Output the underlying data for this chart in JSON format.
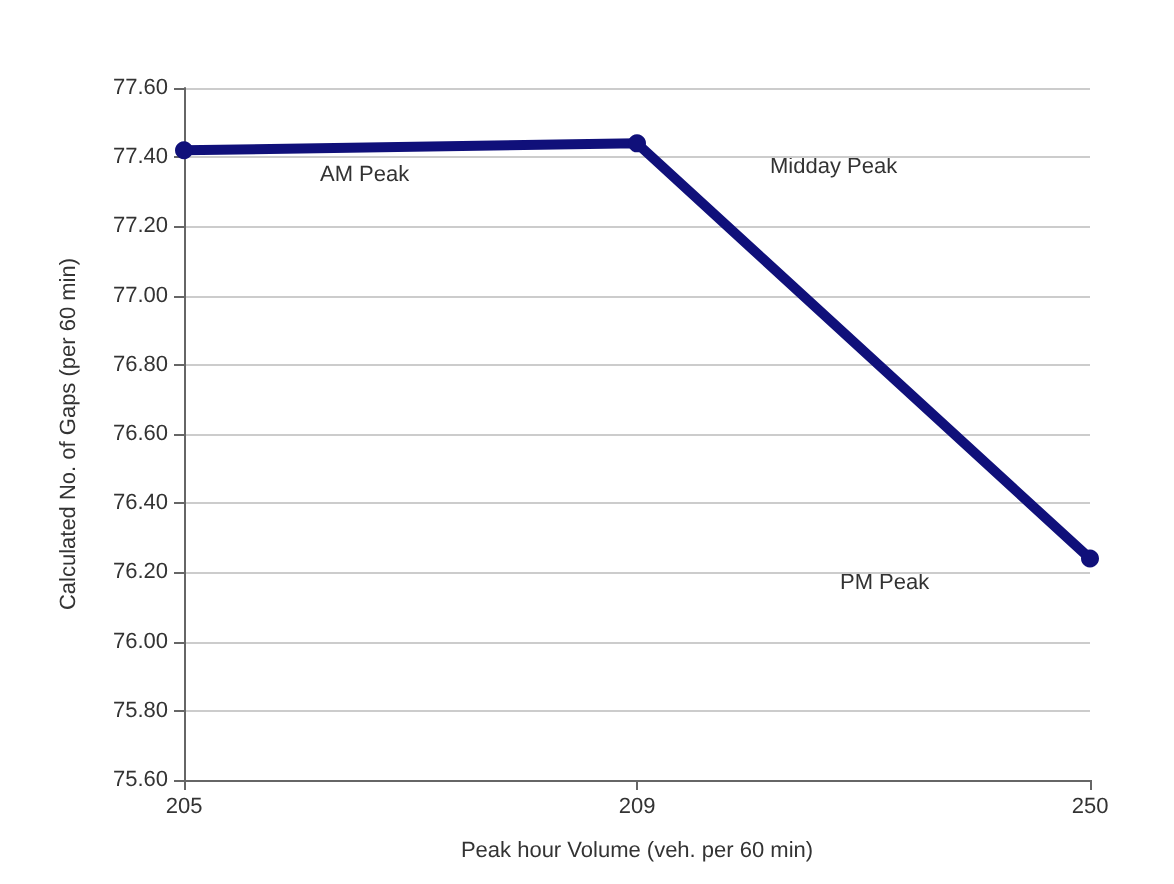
{
  "chart_data": {
    "type": "line",
    "xlabel": "Peak hour Volume (veh. per 60 min)",
    "ylabel": "Calculated No. of Gaps (per 60 min)",
    "categories": [
      "205",
      "209",
      "250"
    ],
    "series": [
      {
        "color": "#10107a",
        "values": [
          77.42,
          77.44,
          76.24
        ]
      }
    ],
    "ylim": [
      75.6,
      77.6
    ],
    "yticks": [
      {
        "value": 75.6,
        "label": "75.60"
      },
      {
        "value": 75.8,
        "label": "75.80"
      },
      {
        "value": 76,
        "label": "76.00"
      },
      {
        "value": 76.2,
        "label": "76.20"
      },
      {
        "value": 76.4,
        "label": "76.40"
      },
      {
        "value": 76.6,
        "label": "76.60"
      },
      {
        "value": 76.8,
        "label": "76.80"
      },
      {
        "value": 77,
        "label": "77.00"
      },
      {
        "value": 77.2,
        "label": "77.20"
      },
      {
        "value": 77.4,
        "label": "77.40"
      },
      {
        "value": 77.6,
        "label": "77.60"
      }
    ],
    "annotations": [
      "AM Peak",
      "Midday Peak",
      "PM Peak"
    ],
    "grid": "y",
    "marker": "circle",
    "line_style": "solid"
  }
}
